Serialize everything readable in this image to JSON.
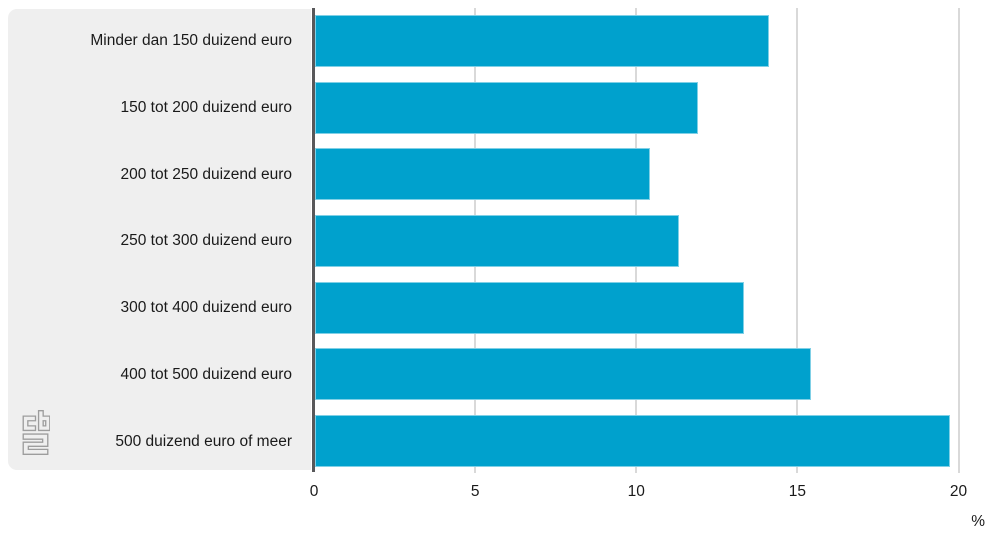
{
  "chart_data": {
    "type": "bar",
    "orientation": "horizontal",
    "categories": [
      "Minder dan 150 duizend euro",
      "150 tot 200 duizend euro",
      "200 tot 250 duizend euro",
      "250 tot 300 duizend euro",
      "300 tot 400 duizend euro",
      "400 tot 500 duizend euro",
      "500 duizend euro of meer"
    ],
    "values": [
      14.1,
      11.9,
      10.4,
      11.3,
      13.3,
      15.4,
      19.7
    ],
    "xlabel": "%",
    "xlim": [
      0,
      20
    ],
    "x_ticks": [
      0,
      5,
      10,
      15,
      20
    ],
    "grid": true,
    "legend": "none",
    "bar_color": "#00a1cd"
  },
  "colors": {
    "bar": "#00a1cd",
    "panel_background": "#efefef",
    "axis_line": "#58585a",
    "gridline": "#d9d9d9",
    "text": "#1a1a1a",
    "logo": "#9d9d9d"
  },
  "branding": {
    "logo_name": "cbs-logo"
  }
}
